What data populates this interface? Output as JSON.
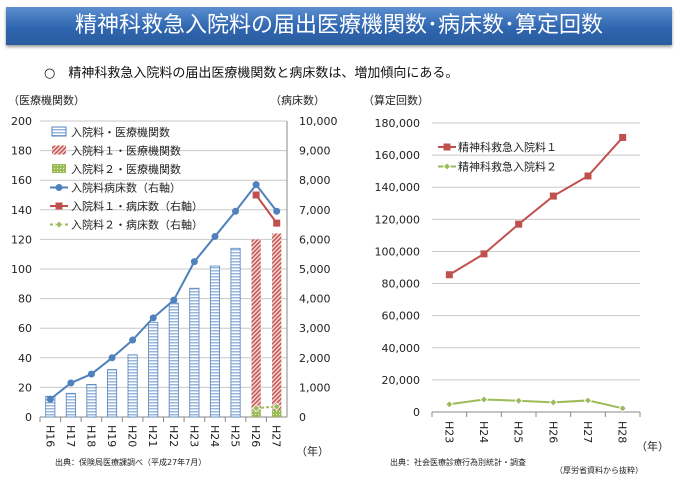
{
  "title": "精神科救急入院料の届出医療機関数･病床数･算定回数",
  "subtitle": "○　精神科救急入院料の届出医療機関数と病床数は、増加傾向にある。",
  "credit": "（厚労省資料から抜粋）",
  "chart_data": [
    {
      "type": "bar",
      "ylabel": "（医療機関数）",
      "y2label": "（病床数）",
      "xunit": "（年）",
      "source": "出典：保険局医療課調べ（平成27年7月）",
      "ylim": [
        0,
        200
      ],
      "yticks": [
        0,
        20,
        40,
        60,
        80,
        100,
        120,
        140,
        160,
        180,
        200
      ],
      "y2lim": [
        0,
        10000
      ],
      "y2ticks": [
        "0",
        "1,000",
        "2,000",
        "3,000",
        "4,000",
        "5,000",
        "6,000",
        "7,000",
        "8,000",
        "9,000",
        "10,000"
      ],
      "categories": [
        "H16",
        "H17",
        "H18",
        "H19",
        "H20",
        "H21",
        "H22",
        "H23",
        "H24",
        "H25",
        "H26",
        "H27"
      ],
      "series": [
        {
          "name": "入院料・医療機関数",
          "kind": "bar",
          "color": "#4f81bd",
          "values": [
            14,
            16,
            22,
            32,
            42,
            64,
            77,
            87,
            102,
            114,
            null,
            null
          ]
        },
        {
          "name": "入院料１・医療機関数",
          "kind": "bar",
          "color": "#c0504d",
          "values": [
            null,
            null,
            null,
            null,
            null,
            null,
            null,
            null,
            null,
            null,
            120,
            124
          ]
        },
        {
          "name": "入院料２・医療機関数",
          "kind": "bar",
          "color": "#9bbb59",
          "values": [
            null,
            null,
            null,
            null,
            null,
            null,
            null,
            null,
            null,
            null,
            5,
            5
          ]
        },
        {
          "name": "入院料病床数（右軸）",
          "kind": "line",
          "color": "#4f81bd",
          "values": [
            600,
            1150,
            1450,
            2000,
            2600,
            3350,
            3950,
            5250,
            6100,
            6950,
            7850,
            6950
          ]
        },
        {
          "name": "入院料１・病床数（右軸）",
          "kind": "line",
          "color": "#c0504d",
          "values": [
            null,
            null,
            null,
            null,
            null,
            null,
            null,
            null,
            null,
            null,
            7500,
            6550
          ]
        },
        {
          "name": "入院料２・病床数（右軸）",
          "kind": "line",
          "color": "#9bbb59",
          "values": [
            null,
            null,
            null,
            null,
            null,
            null,
            null,
            null,
            null,
            null,
            300,
            350
          ]
        }
      ]
    },
    {
      "type": "line",
      "ylabel": "（算定回数）",
      "xunit": "（年）",
      "source": "出典：社会医療診療行為別統計・調査",
      "ylim": [
        0,
        180000
      ],
      "yticks": [
        "0",
        "20,000",
        "40,000",
        "60,000",
        "80,000",
        "100,000",
        "120,000",
        "140,000",
        "160,000",
        "180,000"
      ],
      "categories": [
        "H23",
        "H24",
        "H25",
        "H26",
        "H27",
        "H28"
      ],
      "series": [
        {
          "name": "精神科救急入院料１",
          "color": "#c0504d",
          "values": [
            85500,
            98500,
            117000,
            134500,
            147000,
            171000
          ]
        },
        {
          "name": "精神科救急入院料２",
          "color": "#9bbb59",
          "values": [
            4800,
            7800,
            7000,
            6000,
            7200,
            2300
          ]
        }
      ]
    }
  ]
}
